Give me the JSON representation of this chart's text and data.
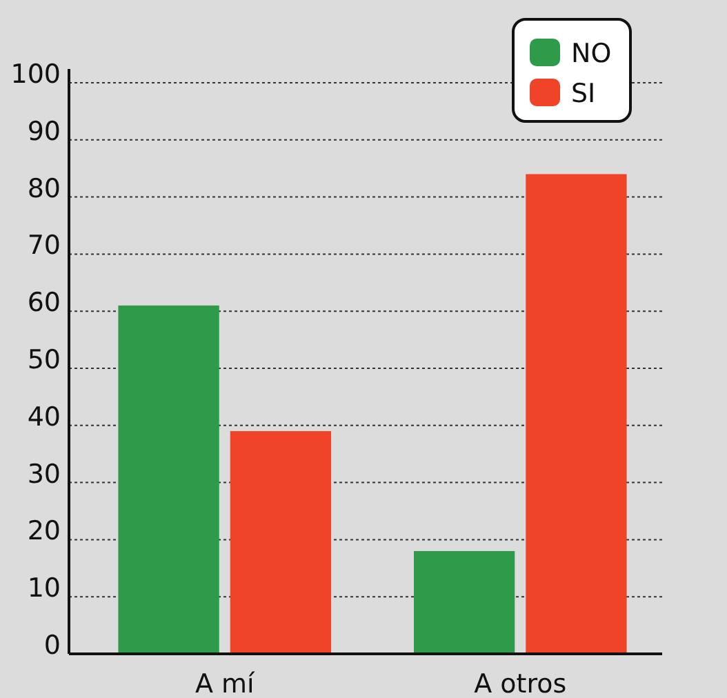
{
  "chart_data": {
    "type": "bar",
    "categories": [
      "A mí",
      "A otros"
    ],
    "series": [
      {
        "name": "NO",
        "color": "#2e9b4a",
        "values": [
          61,
          18
        ]
      },
      {
        "name": "SI",
        "color": "#ef4428",
        "values": [
          39,
          84
        ]
      }
    ],
    "ylim": [
      0,
      100
    ],
    "yticks": [
      0,
      10,
      20,
      30,
      40,
      50,
      60,
      70,
      80,
      90,
      100
    ],
    "grid": "y",
    "legend": "top right"
  }
}
